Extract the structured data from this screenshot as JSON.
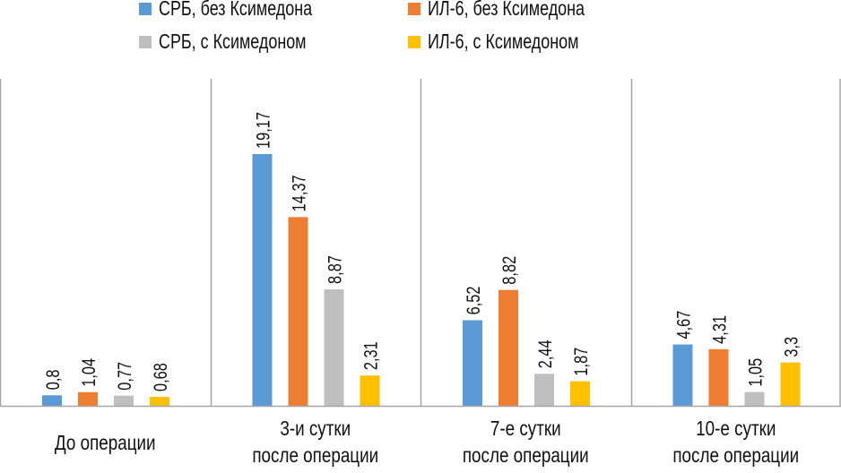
{
  "chart_data": {
    "type": "bar",
    "title": "",
    "xlabel": "",
    "ylabel": "",
    "ylim": [
      0,
      25
    ],
    "grid": false,
    "legend_position": "top",
    "categories": [
      [
        "До операции"
      ],
      [
        "3-и сутки",
        "после операции"
      ],
      [
        "7-е сутки",
        "после операции"
      ],
      [
        "10-е сутки",
        "после операции"
      ]
    ],
    "series": [
      {
        "name": "СРБ, без Ксимедона",
        "color": "#5B9BD5",
        "values": [
          0.8,
          19.17,
          6.52,
          4.67
        ],
        "labels": [
          "0,8",
          "19,17",
          "6,52",
          "4,67"
        ]
      },
      {
        "name": "ИЛ-6, без Ксимедона",
        "color": "#ED7D31",
        "values": [
          1.04,
          14.37,
          8.82,
          4.31
        ],
        "labels": [
          "1,04",
          "14,37",
          "8,82",
          "4,31"
        ]
      },
      {
        "name": "СРБ, с Ксимедоном",
        "color": "#BFBFBF",
        "values": [
          0.77,
          8.87,
          2.44,
          1.05
        ],
        "labels": [
          "0,77",
          "8,87",
          "2,44",
          "1,05"
        ]
      },
      {
        "name": "ИЛ-6, с Ксимедоном",
        "color": "#FFC000",
        "values": [
          0.68,
          2.31,
          1.87,
          3.3
        ],
        "labels": [
          "0,68",
          "2,31",
          "1,87",
          "3,3"
        ]
      }
    ]
  }
}
